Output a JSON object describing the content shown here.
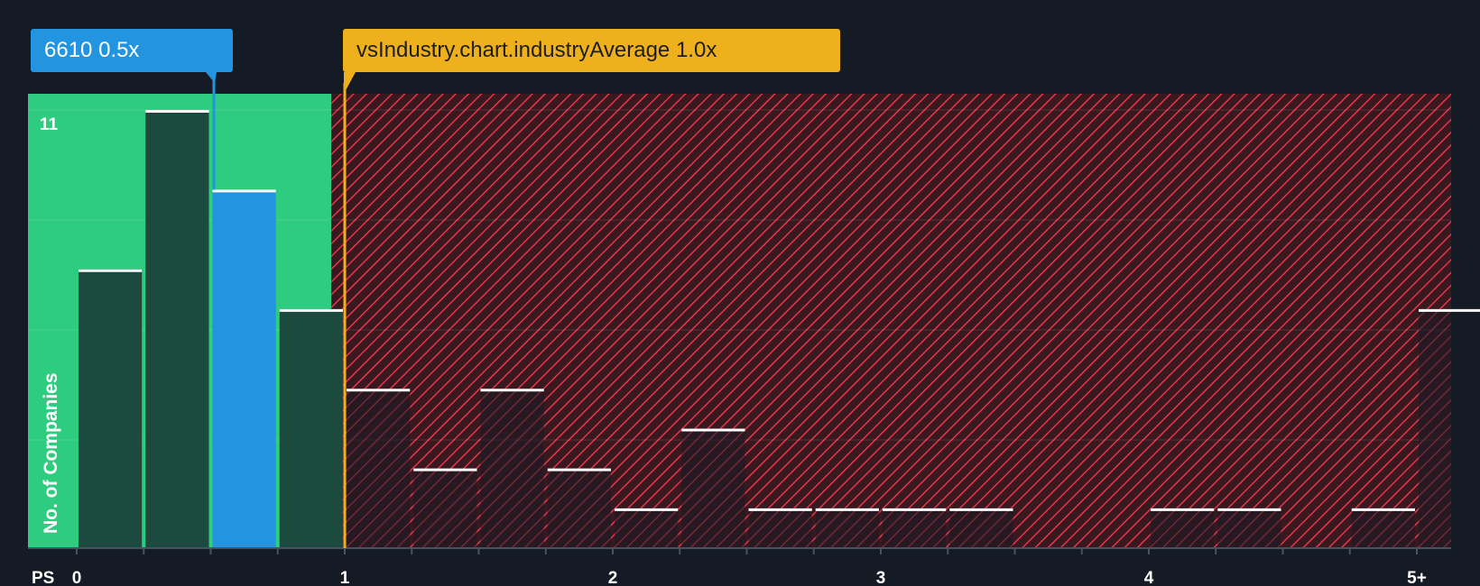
{
  "company_label": {
    "ticker": "6610",
    "value": "0.5x"
  },
  "industry_label": {
    "text": "vsIndustry.chart.industryAverage",
    "value": "1.0x"
  },
  "colors": {
    "background": "#151b24",
    "company_zone": "#2ecc7e",
    "company_bar": "#2394e0",
    "zone_bar": "#1d4a3f",
    "industry_zone": "#e5374a",
    "industry_line": "#eeb01c"
  },
  "chart_data": {
    "type": "bar",
    "title": "",
    "xlabel": "PS",
    "ylabel": "No. of Companies",
    "bin_width": 0.25,
    "x_range": [
      0,
      5.25
    ],
    "ylim": [
      0,
      11.5
    ],
    "y_top_tick": 11,
    "x_tick_values": [
      0,
      1,
      2,
      3,
      4,
      5
    ],
    "x_tick_labels": [
      "0",
      "1",
      "2",
      "3",
      "4",
      "5+"
    ],
    "bins_start": [
      0,
      0.25,
      0.5,
      0.75,
      1.0,
      1.25,
      1.5,
      1.75,
      2.0,
      2.25,
      2.5,
      2.75,
      3.0,
      3.25,
      3.5,
      3.75,
      4.0,
      4.25,
      4.5,
      4.75,
      5.0
    ],
    "values": [
      7,
      11,
      9,
      6,
      4,
      2,
      4,
      2,
      1,
      3,
      1,
      1,
      1,
      1,
      0,
      0,
      1,
      1,
      0,
      1,
      6
    ],
    "highlight_bin_start": 0.5,
    "company_value": 0.5,
    "industry_average": 1.0,
    "company_zone_end": 0.95
  }
}
